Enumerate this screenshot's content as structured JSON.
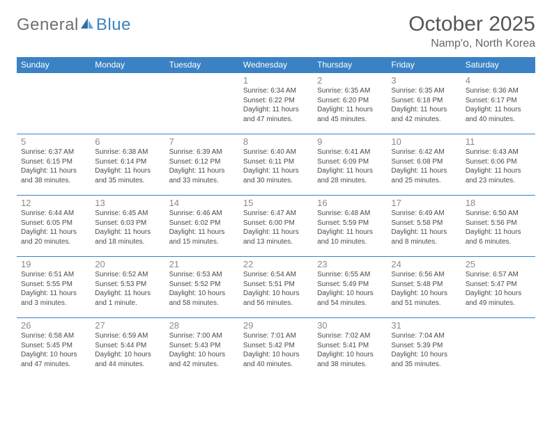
{
  "brand": {
    "general": "General",
    "blue": "Blue"
  },
  "header": {
    "title": "October 2025",
    "location": "Namp'o, North Korea"
  },
  "colors": {
    "accent": "#3b82c4",
    "text": "#4a4a4a",
    "daynum": "#8a8a8a"
  },
  "day_headers": [
    "Sunday",
    "Monday",
    "Tuesday",
    "Wednesday",
    "Thursday",
    "Friday",
    "Saturday"
  ],
  "weeks": [
    [
      null,
      null,
      null,
      {
        "n": "1",
        "sr": "Sunrise: 6:34 AM",
        "ss": "Sunset: 6:22 PM",
        "d1": "Daylight: 11 hours",
        "d2": "and 47 minutes."
      },
      {
        "n": "2",
        "sr": "Sunrise: 6:35 AM",
        "ss": "Sunset: 6:20 PM",
        "d1": "Daylight: 11 hours",
        "d2": "and 45 minutes."
      },
      {
        "n": "3",
        "sr": "Sunrise: 6:35 AM",
        "ss": "Sunset: 6:18 PM",
        "d1": "Daylight: 11 hours",
        "d2": "and 42 minutes."
      },
      {
        "n": "4",
        "sr": "Sunrise: 6:36 AM",
        "ss": "Sunset: 6:17 PM",
        "d1": "Daylight: 11 hours",
        "d2": "and 40 minutes."
      }
    ],
    [
      {
        "n": "5",
        "sr": "Sunrise: 6:37 AM",
        "ss": "Sunset: 6:15 PM",
        "d1": "Daylight: 11 hours",
        "d2": "and 38 minutes."
      },
      {
        "n": "6",
        "sr": "Sunrise: 6:38 AM",
        "ss": "Sunset: 6:14 PM",
        "d1": "Daylight: 11 hours",
        "d2": "and 35 minutes."
      },
      {
        "n": "7",
        "sr": "Sunrise: 6:39 AM",
        "ss": "Sunset: 6:12 PM",
        "d1": "Daylight: 11 hours",
        "d2": "and 33 minutes."
      },
      {
        "n": "8",
        "sr": "Sunrise: 6:40 AM",
        "ss": "Sunset: 6:11 PM",
        "d1": "Daylight: 11 hours",
        "d2": "and 30 minutes."
      },
      {
        "n": "9",
        "sr": "Sunrise: 6:41 AM",
        "ss": "Sunset: 6:09 PM",
        "d1": "Daylight: 11 hours",
        "d2": "and 28 minutes."
      },
      {
        "n": "10",
        "sr": "Sunrise: 6:42 AM",
        "ss": "Sunset: 6:08 PM",
        "d1": "Daylight: 11 hours",
        "d2": "and 25 minutes."
      },
      {
        "n": "11",
        "sr": "Sunrise: 6:43 AM",
        "ss": "Sunset: 6:06 PM",
        "d1": "Daylight: 11 hours",
        "d2": "and 23 minutes."
      }
    ],
    [
      {
        "n": "12",
        "sr": "Sunrise: 6:44 AM",
        "ss": "Sunset: 6:05 PM",
        "d1": "Daylight: 11 hours",
        "d2": "and 20 minutes."
      },
      {
        "n": "13",
        "sr": "Sunrise: 6:45 AM",
        "ss": "Sunset: 6:03 PM",
        "d1": "Daylight: 11 hours",
        "d2": "and 18 minutes."
      },
      {
        "n": "14",
        "sr": "Sunrise: 6:46 AM",
        "ss": "Sunset: 6:02 PM",
        "d1": "Daylight: 11 hours",
        "d2": "and 15 minutes."
      },
      {
        "n": "15",
        "sr": "Sunrise: 6:47 AM",
        "ss": "Sunset: 6:00 PM",
        "d1": "Daylight: 11 hours",
        "d2": "and 13 minutes."
      },
      {
        "n": "16",
        "sr": "Sunrise: 6:48 AM",
        "ss": "Sunset: 5:59 PM",
        "d1": "Daylight: 11 hours",
        "d2": "and 10 minutes."
      },
      {
        "n": "17",
        "sr": "Sunrise: 6:49 AM",
        "ss": "Sunset: 5:58 PM",
        "d1": "Daylight: 11 hours",
        "d2": "and 8 minutes."
      },
      {
        "n": "18",
        "sr": "Sunrise: 6:50 AM",
        "ss": "Sunset: 5:56 PM",
        "d1": "Daylight: 11 hours",
        "d2": "and 6 minutes."
      }
    ],
    [
      {
        "n": "19",
        "sr": "Sunrise: 6:51 AM",
        "ss": "Sunset: 5:55 PM",
        "d1": "Daylight: 11 hours",
        "d2": "and 3 minutes."
      },
      {
        "n": "20",
        "sr": "Sunrise: 6:52 AM",
        "ss": "Sunset: 5:53 PM",
        "d1": "Daylight: 11 hours",
        "d2": "and 1 minute."
      },
      {
        "n": "21",
        "sr": "Sunrise: 6:53 AM",
        "ss": "Sunset: 5:52 PM",
        "d1": "Daylight: 10 hours",
        "d2": "and 58 minutes."
      },
      {
        "n": "22",
        "sr": "Sunrise: 6:54 AM",
        "ss": "Sunset: 5:51 PM",
        "d1": "Daylight: 10 hours",
        "d2": "and 56 minutes."
      },
      {
        "n": "23",
        "sr": "Sunrise: 6:55 AM",
        "ss": "Sunset: 5:49 PM",
        "d1": "Daylight: 10 hours",
        "d2": "and 54 minutes."
      },
      {
        "n": "24",
        "sr": "Sunrise: 6:56 AM",
        "ss": "Sunset: 5:48 PM",
        "d1": "Daylight: 10 hours",
        "d2": "and 51 minutes."
      },
      {
        "n": "25",
        "sr": "Sunrise: 6:57 AM",
        "ss": "Sunset: 5:47 PM",
        "d1": "Daylight: 10 hours",
        "d2": "and 49 minutes."
      }
    ],
    [
      {
        "n": "26",
        "sr": "Sunrise: 6:58 AM",
        "ss": "Sunset: 5:45 PM",
        "d1": "Daylight: 10 hours",
        "d2": "and 47 minutes."
      },
      {
        "n": "27",
        "sr": "Sunrise: 6:59 AM",
        "ss": "Sunset: 5:44 PM",
        "d1": "Daylight: 10 hours",
        "d2": "and 44 minutes."
      },
      {
        "n": "28",
        "sr": "Sunrise: 7:00 AM",
        "ss": "Sunset: 5:43 PM",
        "d1": "Daylight: 10 hours",
        "d2": "and 42 minutes."
      },
      {
        "n": "29",
        "sr": "Sunrise: 7:01 AM",
        "ss": "Sunset: 5:42 PM",
        "d1": "Daylight: 10 hours",
        "d2": "and 40 minutes."
      },
      {
        "n": "30",
        "sr": "Sunrise: 7:02 AM",
        "ss": "Sunset: 5:41 PM",
        "d1": "Daylight: 10 hours",
        "d2": "and 38 minutes."
      },
      {
        "n": "31",
        "sr": "Sunrise: 7:04 AM",
        "ss": "Sunset: 5:39 PM",
        "d1": "Daylight: 10 hours",
        "d2": "and 35 minutes."
      },
      null
    ]
  ]
}
